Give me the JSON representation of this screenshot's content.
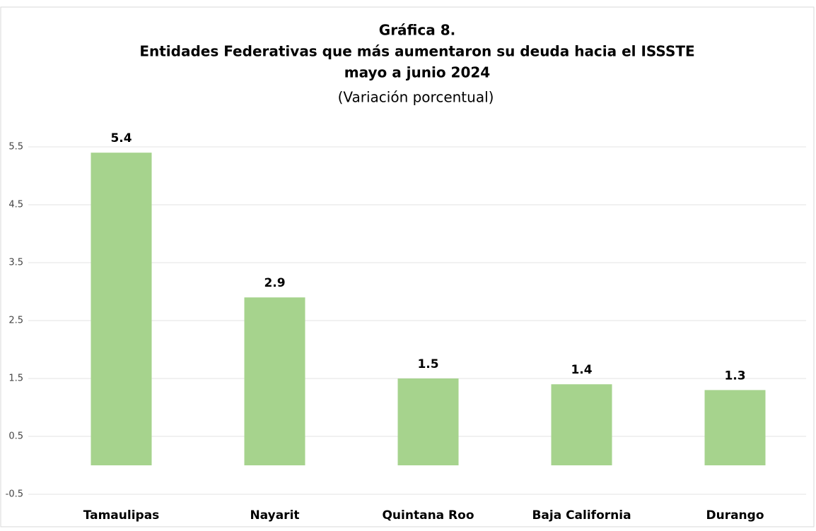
{
  "chart_data": {
    "type": "bar",
    "title": [
      "Gráfica 8.",
      "Entidades Federativas que más aumentaron su deuda hacia el ISSSTE",
      "mayo a junio 2024"
    ],
    "subtitle": "(Variación porcentual)",
    "categories": [
      "Tamaulipas",
      "Nayarit",
      "Quintana Roo",
      "Baja California",
      "Durango"
    ],
    "values": [
      5.4,
      2.9,
      1.5,
      1.4,
      1.3
    ],
    "color": "#a6d38d",
    "ylim": [
      -0.5,
      5.5
    ],
    "yticks": [
      -0.5,
      0.5,
      1.5,
      2.5,
      3.5,
      4.5,
      5.5
    ],
    "grid": true
  }
}
